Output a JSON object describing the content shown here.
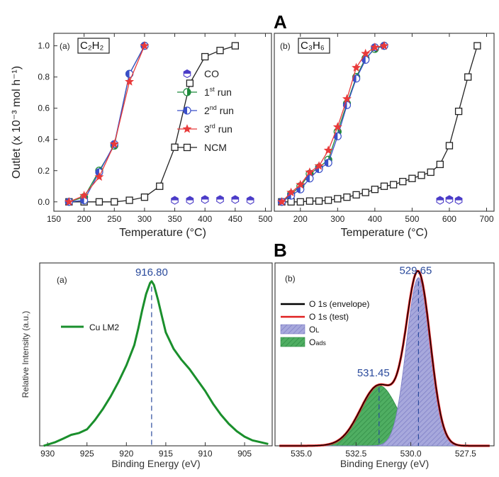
{
  "header": {
    "letter_a": "A",
    "letter_b": "B"
  },
  "colors": {
    "co": "#4b3cc8",
    "run1": "#1e8a3c",
    "run2": "#3a4fc8",
    "run3": "#e83a3a",
    "ncm": "#222222",
    "cu": "#1a8f2c",
    "envelope": "#000000",
    "test": "#e02020",
    "ol_fill": "#a7a8dc",
    "oads_fill": "#4fae62",
    "peak_label": "#2a4a9c"
  },
  "chart_data": [
    {
      "id": "A-a",
      "type": "line",
      "panel_tag": "(a)",
      "gas_label": "C₂H₂",
      "xlabel": "Temperature (°C)",
      "ylabel": "Outlet (x 10⁻³ mol h⁻¹)",
      "xlim": [
        150,
        510
      ],
      "ylim": [
        -0.06,
        1.08
      ],
      "x_ticks": [
        150,
        200,
        250,
        300,
        350,
        400,
        450,
        500
      ],
      "x_tick_labels": [
        "150",
        "200",
        "250",
        "300",
        "350",
        "400",
        "450",
        "500"
      ],
      "y_ticks": [
        0.0,
        0.2,
        0.4,
        0.6,
        0.8,
        1.0
      ],
      "y_tick_labels": [
        "0.0",
        "0.2",
        "0.4",
        "0.6",
        "0.8",
        "1.0"
      ],
      "legend": [
        "CO",
        "1st run",
        "2nd run",
        "3rd run",
        "NCM"
      ],
      "series": [
        {
          "name": "CO",
          "x": [
            350,
            375,
            400,
            425,
            450,
            475
          ],
          "y": [
            0.01,
            0.01,
            0.015,
            0.015,
            0.015,
            0.01
          ]
        },
        {
          "name": "1st run",
          "x": [
            175,
            200,
            225,
            250,
            275,
            300
          ],
          "y": [
            0.0,
            0.03,
            0.2,
            0.36,
            0.82,
            1.0
          ]
        },
        {
          "name": "2nd run",
          "x": [
            175,
            200,
            225,
            250,
            275,
            300
          ],
          "y": [
            0.0,
            0.01,
            0.19,
            0.37,
            0.82,
            1.0
          ]
        },
        {
          "name": "3rd run",
          "x": [
            175,
            200,
            225,
            250,
            275,
            300
          ],
          "y": [
            0.0,
            0.04,
            0.16,
            0.37,
            0.77,
            1.0
          ]
        },
        {
          "name": "NCM",
          "x": [
            175,
            200,
            225,
            250,
            275,
            300,
            325,
            350,
            375,
            400,
            425,
            450
          ],
          "y": [
            0.0,
            0.0,
            0.0,
            0.0,
            0.01,
            0.03,
            0.1,
            0.35,
            0.76,
            0.93,
            0.97,
            1.0
          ]
        }
      ]
    },
    {
      "id": "A-b",
      "type": "line",
      "panel_tag": "(b)",
      "gas_label": "C₃H₆",
      "xlabel": "Temperature (°C)",
      "xlim": [
        130,
        720
      ],
      "ylim": [
        -0.06,
        1.08
      ],
      "x_ticks": [
        200,
        300,
        400,
        500,
        600,
        700
      ],
      "x_tick_labels": [
        "200",
        "300",
        "400",
        "500",
        "600",
        "700"
      ],
      "series": [
        {
          "name": "CO",
          "x": [
            575,
            600,
            625
          ],
          "y": [
            0.01,
            0.015,
            0.01
          ]
        },
        {
          "name": "1st run",
          "x": [
            150,
            175,
            200,
            225,
            250,
            275,
            300,
            325,
            350,
            375,
            400,
            425
          ],
          "y": [
            0.0,
            0.05,
            0.1,
            0.18,
            0.22,
            0.27,
            0.45,
            0.63,
            0.8,
            0.92,
            0.98,
            1.0
          ]
        },
        {
          "name": "2nd run",
          "x": [
            150,
            175,
            200,
            225,
            250,
            275,
            300,
            325,
            350,
            375,
            400,
            425
          ],
          "y": [
            0.0,
            0.04,
            0.08,
            0.15,
            0.21,
            0.25,
            0.42,
            0.62,
            0.79,
            0.91,
            0.99,
            1.0
          ]
        },
        {
          "name": "3rd run",
          "x": [
            150,
            175,
            200,
            225,
            250,
            275,
            300,
            325,
            350,
            375,
            400,
            425
          ],
          "y": [
            0.0,
            0.06,
            0.11,
            0.19,
            0.23,
            0.33,
            0.48,
            0.66,
            0.86,
            0.95,
            0.99,
            1.0
          ]
        },
        {
          "name": "NCM",
          "x": [
            150,
            175,
            200,
            225,
            250,
            275,
            300,
            325,
            350,
            375,
            400,
            425,
            450,
            475,
            500,
            525,
            550,
            575,
            600,
            625,
            650,
            675
          ],
          "y": [
            0.0,
            0.0,
            0.0,
            0.005,
            0.005,
            0.01,
            0.02,
            0.03,
            0.045,
            0.06,
            0.08,
            0.1,
            0.11,
            0.13,
            0.15,
            0.17,
            0.19,
            0.24,
            0.36,
            0.58,
            0.8,
            1.0
          ]
        }
      ]
    },
    {
      "id": "B-a",
      "type": "line",
      "panel_tag": "(a)",
      "xlabel": "Binding Energy (eV)",
      "ylabel": "Relative Intensity (a.u.)",
      "xlim": [
        931,
        901.5
      ],
      "ylim": [
        0,
        1.0
      ],
      "x_ticks": [
        930,
        925,
        920,
        915,
        910,
        905
      ],
      "x_tick_labels": [
        "930",
        "925",
        "920",
        "915",
        "910",
        "905"
      ],
      "legend": [
        "Cu LM2"
      ],
      "peak_label": "916.80",
      "peak_x": 916.8,
      "series": [
        {
          "name": "Cu LM2",
          "x": [
            930.5,
            929,
            928,
            927,
            926,
            925,
            924,
            923,
            922,
            921,
            920,
            919,
            918.5,
            918,
            917.5,
            917,
            916.8,
            916.5,
            916,
            915.5,
            915,
            914,
            913,
            912,
            911,
            910,
            909,
            908,
            907,
            906,
            905,
            904,
            903,
            902
          ],
          "y": [
            0.0,
            0.02,
            0.04,
            0.06,
            0.07,
            0.09,
            0.14,
            0.2,
            0.27,
            0.35,
            0.44,
            0.55,
            0.64,
            0.74,
            0.83,
            0.89,
            0.9,
            0.88,
            0.8,
            0.71,
            0.62,
            0.53,
            0.47,
            0.42,
            0.36,
            0.3,
            0.23,
            0.17,
            0.12,
            0.08,
            0.05,
            0.03,
            0.02,
            0.01
          ]
        }
      ]
    },
    {
      "id": "B-b",
      "type": "area",
      "panel_tag": "(b)",
      "xlabel": "Binding Energy (eV)",
      "xlim": [
        536.2,
        526.2
      ],
      "ylim": [
        0,
        1.0
      ],
      "x_ticks": [
        535.0,
        532.5,
        530.0,
        527.5
      ],
      "x_tick_labels": [
        "535.0",
        "532.5",
        "530.0",
        "527.5"
      ],
      "legend": [
        "O 1s (envelope)",
        "O 1s (test)",
        "OL",
        "Oads"
      ],
      "peak_labels": [
        {
          "text": "529.65",
          "x": 529.65
        },
        {
          "text": "531.45",
          "x": 531.45
        }
      ],
      "components": [
        {
          "name": "OL",
          "center": 529.65,
          "height": 0.92,
          "width": 0.55
        },
        {
          "name": "Oads",
          "center": 531.45,
          "height": 0.33,
          "width": 0.85
        }
      ]
    }
  ]
}
